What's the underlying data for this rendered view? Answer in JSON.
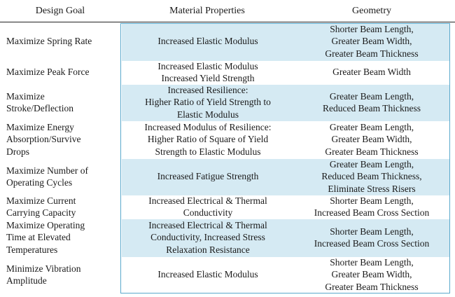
{
  "table": {
    "header": [
      "Design Goal",
      "Material Properties",
      "Geometry"
    ],
    "rows": [
      [
        [
          "Maximize Spring Rate"
        ],
        [
          "Increased Elastic Modulus"
        ],
        [
          "Shorter Beam Length,",
          "Greater Beam Width,",
          "Greater Beam Thickness"
        ]
      ],
      [
        [
          "Maximize Peak Force"
        ],
        [
          "Increased Elastic Modulus",
          "Increased Yield Strength"
        ],
        [
          "Greater Beam Width"
        ]
      ],
      [
        [
          "Maximize",
          "Stroke/Deflection"
        ],
        [
          "Increased Resilience:",
          "Higher Ratio of Yield Strength to",
          "Elastic Modulus"
        ],
        [
          "Greater Beam Length,",
          "Reduced Beam Thickness"
        ]
      ],
      [
        [
          "Maximize Energy",
          "Absorption/Survive",
          "Drops"
        ],
        [
          "Increased Modulus of Resilience:",
          "Higher Ratio of Square of Yield",
          "Strength to Elastic Modulus"
        ],
        [
          "Greater Beam Length,",
          "Greater Beam Width,",
          "Greater Beam Thickness"
        ]
      ],
      [
        [
          "Maximize Number of",
          "Operating Cycles"
        ],
        [
          "Increased Fatigue Strength"
        ],
        [
          "Greater Beam Length,",
          "Reduced Beam Thickness,",
          "Eliminate Stress Risers"
        ]
      ],
      [
        [
          "Maximize Current",
          "Carrying Capacity"
        ],
        [
          "Increased Electrical & Thermal",
          "Conductivity"
        ],
        [
          "Shorter Beam Length,",
          "Increased Beam Cross Section"
        ]
      ],
      [
        [
          "Maximize Operating",
          "Time at Elevated",
          "Temperatures"
        ],
        [
          "Increased Electrical & Thermal",
          "Conductivity, Increased Stress",
          "Relaxation Resistance"
        ],
        [
          "Shorter Beam Length,",
          "Increased Beam Cross Section"
        ]
      ],
      [
        [
          "Minimize Vibration",
          "Amplitude"
        ],
        [
          "Increased Elastic Modulus"
        ],
        [
          "Shorter Beam Length,",
          "Greater Beam Width,",
          "Greater Beam Thickness"
        ]
      ]
    ]
  }
}
